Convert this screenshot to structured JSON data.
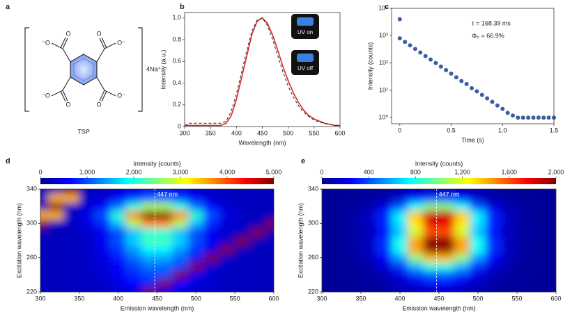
{
  "structure": {
    "label": "a",
    "name": "TSP",
    "counterion": "4Na⁺",
    "atom_labels": [
      "⁻O",
      "O",
      "O",
      "O⁻",
      "⁻O",
      "O",
      "O",
      "O⁻"
    ]
  },
  "chart_data": [
    {
      "type": "line",
      "label": "b",
      "xlabel": "Wavelength (nm)",
      "ylabel": "Intensity (a.u.)",
      "x": [
        300,
        310,
        320,
        330,
        340,
        350,
        360,
        370,
        380,
        390,
        400,
        410,
        420,
        430,
        440,
        450,
        460,
        470,
        480,
        490,
        500,
        510,
        520,
        530,
        540,
        550,
        560,
        570,
        580,
        590,
        600
      ],
      "series": [
        {
          "color": "#d62728",
          "dash": false,
          "values": [
            0.01,
            0.01,
            0.01,
            0.01,
            0.01,
            0.01,
            0.01,
            0.01,
            0.03,
            0.1,
            0.25,
            0.45,
            0.65,
            0.85,
            0.97,
            1.0,
            0.95,
            0.84,
            0.7,
            0.55,
            0.42,
            0.31,
            0.22,
            0.15,
            0.1,
            0.07,
            0.05,
            0.03,
            0.02,
            0.01,
            0.01
          ]
        },
        {
          "color": "#222222",
          "dash": true,
          "values": [
            0.01,
            0.03,
            0.03,
            0.03,
            0.03,
            0.03,
            0.03,
            0.03,
            0.05,
            0.14,
            0.3,
            0.5,
            0.7,
            0.88,
            0.98,
            1.0,
            0.93,
            0.8,
            0.65,
            0.5,
            0.37,
            0.27,
            0.19,
            0.13,
            0.09,
            0.06,
            0.04,
            0.03,
            0.02,
            0.01,
            0.01
          ]
        }
      ],
      "xlim": [
        300,
        600
      ],
      "xticks": [
        300,
        350,
        400,
        450,
        500,
        550,
        600
      ],
      "ylim": [
        0,
        1.05
      ],
      "yticks": [
        0,
        0.2,
        0.4,
        0.6,
        0.8,
        {
          "value": 1,
          "label": "1.0"
        }
      ],
      "annotations": [
        "UV on",
        "UV off"
      ]
    },
    {
      "type": "scatter",
      "label": "c",
      "xlabel": "Time (s)",
      "ylabel": "Intensity (counts)",
      "color": "#3a5fa0",
      "log_y": true,
      "x": [
        0,
        0,
        0.05,
        0.1,
        0.15,
        0.2,
        0.25,
        0.3,
        0.35,
        0.4,
        0.45,
        0.5,
        0.55,
        0.6,
        0.65,
        0.7,
        0.75,
        0.8,
        0.85,
        0.9,
        0.95,
        1,
        1.05,
        1.1,
        1.15,
        1.2,
        1.25,
        1.3,
        1.35,
        1.4,
        1.45,
        1.5
      ],
      "values": [
        4000,
        800,
        594,
        441,
        327,
        243,
        180,
        134,
        100,
        74,
        55,
        41,
        30,
        22,
        17,
        12,
        9.2,
        6.8,
        5.1,
        3.8,
        2.8,
        2.1,
        1.5,
        1.2,
        1,
        1,
        1,
        1,
        1,
        1,
        1,
        1
      ],
      "xlim": [
        -0.08,
        1.5
      ],
      "xticks": [
        0,
        0.5,
        {
          "value": 1,
          "label": "1.0"
        },
        1.5
      ],
      "ylim": [
        0.6,
        10000
      ],
      "yticks": [
        {
          "value": 1,
          "label": "10⁰"
        },
        {
          "value": 10,
          "label": "10¹"
        },
        {
          "value": 100,
          "label": "10²"
        },
        {
          "value": 1000,
          "label": "10³"
        },
        {
          "value": 10000,
          "label": "10⁴"
        }
      ],
      "annotations": [
        "τ = 168.39 ms",
        "Φₚ = 66.9%"
      ]
    },
    {
      "type": "heatmap",
      "label": "d",
      "xlabel": "Emission wavelength (nm)",
      "ylabel": "Excitation wavelength (nm)",
      "colorbar_label": "Intensity (counts)",
      "x": [
        300,
        320,
        340,
        360,
        380,
        400,
        420,
        440,
        460,
        480,
        500,
        520,
        540,
        560,
        580,
        600
      ],
      "y": [
        220,
        230,
        240,
        250,
        260,
        270,
        280,
        290,
        300,
        310,
        320,
        330,
        340
      ],
      "z": [
        [
          300,
          300,
          300,
          310,
          340,
          410,
          510,
          5000,
          590,
          510,
          410,
          340,
          310,
          300,
          300,
          300
        ],
        [
          300,
          300,
          310,
          320,
          370,
          480,
          650,
          780,
          5000,
          650,
          480,
          370,
          320,
          310,
          300,
          300
        ],
        [
          300,
          300,
          310,
          330,
          400,
          550,
          780,
          970,
          970,
          5000,
          550,
          400,
          330,
          310,
          300,
          300
        ],
        [
          300,
          300,
          310,
          340,
          430,
          620,
          920,
          1160,
          1160,
          920,
          5000,
          430,
          340,
          310,
          300,
          300
        ],
        [
          300,
          300,
          310,
          350,
          470,
          730,
          1130,
          1450,
          1450,
          1130,
          730,
          5000,
          350,
          310,
          300,
          300
        ],
        [
          300,
          300,
          320,
          360,
          520,
          880,
          1400,
          1840,
          1840,
          1400,
          880,
          520,
          5000,
          320,
          300,
          300
        ],
        [
          300,
          300,
          320,
          380,
          580,
          1020,
          1680,
          2220,
          2220,
          1680,
          1020,
          580,
          380,
          5000,
          300,
          300
        ],
        [
          300,
          300,
          320,
          370,
          550,
          950,
          1540,
          2030,
          2030,
          1540,
          950,
          550,
          370,
          320,
          5000,
          300
        ],
        [
          5000,
          300,
          340,
          440,
          790,
          1560,
          2720,
          3660,
          3660,
          2720,
          1560,
          790,
          440,
          340,
          300,
          5000
        ],
        [
          3500,
          3500,
          350,
          500,
          1000,
          2100,
          3750,
          5000,
          5000,
          3750,
          2100,
          1000,
          500,
          350,
          300,
          300
        ],
        [
          300,
          5000,
          330,
          400,
          650,
          1200,
          2030,
          2700,
          2700,
          2030,
          1200,
          650,
          400,
          330,
          300,
          300
        ],
        [
          300,
          3500,
          3500,
          330,
          410,
          590,
          850,
          1070,
          1070,
          850,
          590,
          410,
          330,
          310,
          300,
          300
        ],
        [
          300,
          300,
          5000,
          310,
          340,
          410,
          510,
          590,
          590,
          510,
          410,
          340,
          310,
          300,
          300,
          300
        ]
      ],
      "xlim": [
        300,
        600
      ],
      "xticks": [
        300,
        350,
        400,
        450,
        500,
        550,
        600
      ],
      "ylim": [
        220,
        340
      ],
      "yticks": [
        220,
        260,
        300,
        340
      ],
      "zlim": [
        0,
        5000
      ],
      "zticks": [
        0,
        {
          "value": 1000,
          "label": "1,000"
        },
        {
          "value": 2000,
          "label": "2,000"
        },
        {
          "value": 3000,
          "label": "3,000"
        },
        {
          "value": 4000,
          "label": "4,000"
        },
        {
          "value": 5000,
          "label": "5,000"
        }
      ],
      "annotation": {
        "x": 447,
        "label": "447 nm"
      }
    },
    {
      "type": "heatmap",
      "label": "e",
      "xlabel": "Emission wavelength (nm)",
      "ylabel": "Excitation wavelength (nm)",
      "colorbar_label": "Intensity (counts)",
      "x": [
        300,
        320,
        340,
        360,
        380,
        400,
        420,
        440,
        460,
        480,
        500,
        520,
        540,
        560,
        580,
        600
      ],
      "y": [
        220,
        230,
        240,
        250,
        260,
        270,
        280,
        290,
        300,
        310,
        320,
        330,
        340
      ],
      "z": [
        [
          50,
          50,
          50,
          50,
          60,
          90,
          120,
          150,
          150,
          120,
          90,
          60,
          50,
          50,
          50,
          50
        ],
        [
          50,
          50,
          50,
          60,
          80,
          120,
          190,
          240,
          240,
          190,
          120,
          80,
          60,
          50,
          50,
          50
        ],
        [
          50,
          50,
          50,
          70,
          110,
          190,
          330,
          430,
          430,
          330,
          190,
          110,
          70,
          50,
          50,
          50
        ],
        [
          50,
          50,
          60,
          80,
          160,
          340,
          600,
          820,
          820,
          600,
          340,
          160,
          80,
          60,
          50,
          50
        ],
        [
          50,
          50,
          60,
          110,
          250,
          550,
          1020,
          1390,
          1390,
          1020,
          550,
          250,
          110,
          60,
          50,
          50
        ],
        [
          50,
          50,
          70,
          130,
          330,
          770,
          1430,
          1970,
          1970,
          1430,
          770,
          330,
          130,
          70,
          50,
          50
        ],
        [
          50,
          50,
          70,
          130,
          330,
          770,
          1430,
          1970,
          1970,
          1430,
          770,
          330,
          130,
          70,
          50,
          50
        ],
        [
          50,
          50,
          70,
          110,
          270,
          630,
          1150,
          1590,
          1590,
          1150,
          630,
          270,
          110,
          70,
          50,
          50
        ],
        [
          50,
          50,
          70,
          120,
          300,
          700,
          1290,
          1780,
          1780,
          1290,
          700,
          300,
          120,
          70,
          50,
          50
        ],
        [
          50,
          50,
          70,
          130,
          320,
          730,
          1360,
          1870,
          1870,
          1360,
          730,
          320,
          130,
          70,
          50,
          50
        ],
        [
          50,
          50,
          60,
          90,
          190,
          410,
          740,
          1010,
          1010,
          740,
          410,
          190,
          90,
          60,
          50,
          50
        ],
        [
          50,
          50,
          50,
          60,
          90,
          160,
          260,
          340,
          340,
          260,
          160,
          90,
          60,
          50,
          50,
          50
        ],
        [
          50,
          50,
          50,
          50,
          60,
          90,
          120,
          150,
          150,
          120,
          90,
          60,
          50,
          50,
          50,
          50
        ]
      ],
      "xlim": [
        300,
        600
      ],
      "xticks": [
        300,
        350,
        400,
        450,
        500,
        550,
        600
      ],
      "ylim": [
        220,
        340
      ],
      "yticks": [
        220,
        260,
        300,
        340
      ],
      "zlim": [
        0,
        2000
      ],
      "zticks": [
        0,
        400,
        800,
        {
          "value": 1200,
          "label": "1,200"
        },
        {
          "value": 1600,
          "label": "1,600"
        },
        {
          "value": 2000,
          "label": "2,000"
        }
      ],
      "annotation": {
        "x": 447,
        "label": "447 nm"
      }
    }
  ]
}
